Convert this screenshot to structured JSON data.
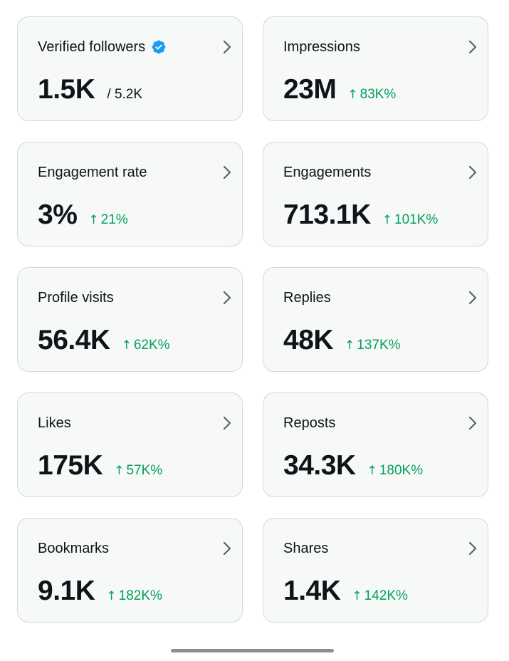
{
  "cards": [
    {
      "title": "Verified followers",
      "value": "1.5K",
      "total": "/ 5.2K",
      "verified": true
    },
    {
      "title": "Impressions",
      "value": "23M",
      "delta": "83K%"
    },
    {
      "title": "Engagement rate",
      "value": "3%",
      "delta": "21%"
    },
    {
      "title": "Engagements",
      "value": "713.1K",
      "delta": "101K%"
    },
    {
      "title": "Profile visits",
      "value": "56.4K",
      "delta": "62K%"
    },
    {
      "title": "Replies",
      "value": "48K",
      "delta": "137K%"
    },
    {
      "title": "Likes",
      "value": "175K",
      "delta": "57K%"
    },
    {
      "title": "Reposts",
      "value": "34.3K",
      "delta": "180K%"
    },
    {
      "title": "Bookmarks",
      "value": "9.1K",
      "delta": "182K%"
    },
    {
      "title": "Shares",
      "value": "1.4K",
      "delta": "142K%"
    }
  ],
  "icons": {
    "verified": "verified-badge-icon",
    "chevron": "chevron-right-icon",
    "delta_arrow": "arrow-up-icon"
  },
  "colors": {
    "card_background": "#f7f9f9",
    "card_border": "#cfd9de",
    "positive_delta": "#00a05a",
    "verified_blue": "#1d9bf0",
    "chevron": "#536471"
  },
  "delta_arrow_glyph": "↑"
}
